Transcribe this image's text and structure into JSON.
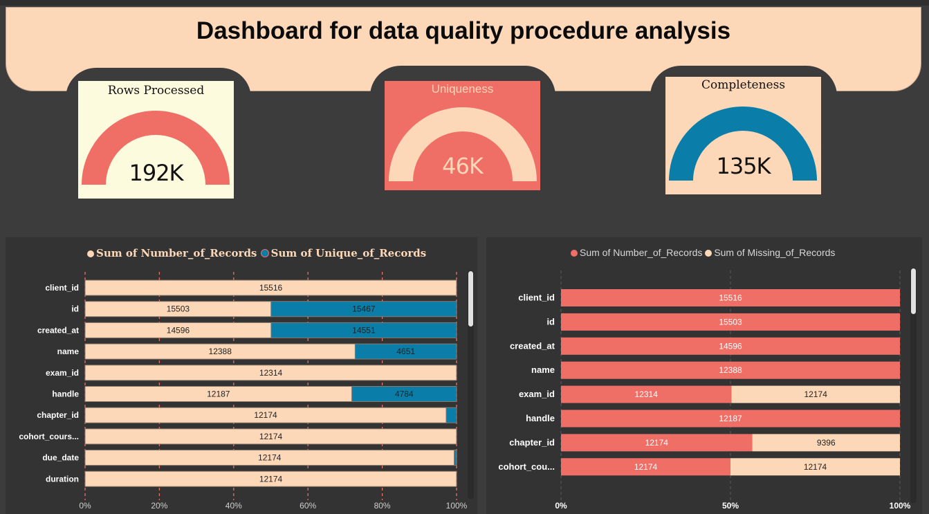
{
  "dashboard": {
    "title": "Dashboard for data quality procedure analysis"
  },
  "kpis": [
    {
      "title": "Rows Processed",
      "value": "192K"
    },
    {
      "title": "Uniqueness",
      "value": "46K"
    },
    {
      "title": "Completeness",
      "value": "135K"
    }
  ],
  "colors": {
    "peach": "#fdd8b8",
    "coral": "#ef6f67",
    "teal": "#0a7ea8",
    "cream": "#fdfbde",
    "dark": "#3c3c3c"
  },
  "chart_data": [
    {
      "type": "bar",
      "stacked": "percent",
      "orientation": "horizontal",
      "legend": "top",
      "categories": [
        "client_id",
        "id",
        "created_at",
        "name",
        "exam_id",
        "handle",
        "chapter_id",
        "cohort_cours...",
        "due_date",
        "duration"
      ],
      "series": [
        {
          "name": "Sum of Number_of_Records",
          "values": [
            15516,
            15503,
            14596,
            12388,
            12314,
            12187,
            12174,
            12174,
            12174,
            12174
          ]
        },
        {
          "name": "Sum of Unique_of_Records",
          "values": [
            0,
            15467,
            14551,
            4651,
            0,
            4784,
            350,
            0,
            80,
            0
          ]
        }
      ],
      "value_labels": [
        [
          "15516",
          ""
        ],
        [
          "15503",
          "15467"
        ],
        [
          "14596",
          "14551"
        ],
        [
          "12388",
          "4651"
        ],
        [
          "12314",
          ""
        ],
        [
          "12187",
          "4784"
        ],
        [
          "12174",
          ""
        ],
        [
          "12174",
          ""
        ],
        [
          "12174",
          ""
        ],
        [
          "12174",
          ""
        ]
      ],
      "x_ticks": [
        "0%",
        "20%",
        "40%",
        "60%",
        "80%",
        "100%"
      ]
    },
    {
      "type": "bar",
      "stacked": "percent",
      "orientation": "horizontal",
      "legend": "top",
      "categories": [
        "client_id",
        "id",
        "created_at",
        "name",
        "exam_id",
        "handle",
        "chapter_id",
        "cohort_cou..."
      ],
      "series": [
        {
          "name": "Sum of Number_of_Records",
          "values": [
            15516,
            15503,
            14596,
            12388,
            12314,
            12187,
            12174,
            12174
          ]
        },
        {
          "name": "Sum of Missing_of_Records",
          "values": [
            0,
            0,
            0,
            0,
            12174,
            0,
            9396,
            12174
          ]
        }
      ],
      "value_labels": [
        [
          "15516",
          ""
        ],
        [
          "15503",
          ""
        ],
        [
          "14596",
          ""
        ],
        [
          "12388",
          ""
        ],
        [
          "12314",
          "12174"
        ],
        [
          "12187",
          ""
        ],
        [
          "12174",
          "9396"
        ],
        [
          "12174",
          "12174"
        ]
      ],
      "x_ticks": [
        "0%",
        "50%",
        "100%"
      ]
    }
  ]
}
